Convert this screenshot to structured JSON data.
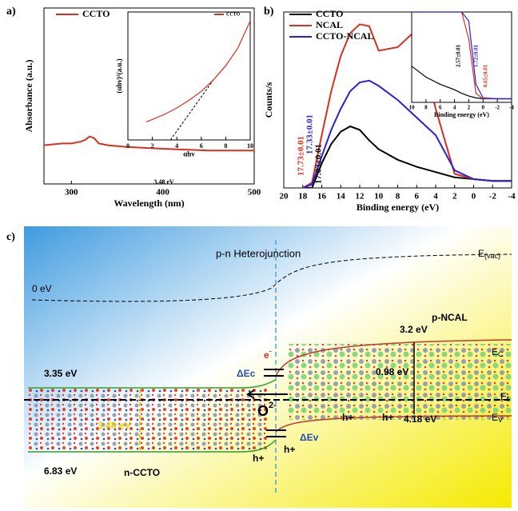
{
  "chart_data": [
    {
      "type": "line",
      "label": "a)",
      "xlabel": "Wavelength (nm)",
      "ylabel": "Absorbance (a.u.)",
      "x": [
        270,
        290,
        300,
        310,
        315,
        320,
        325,
        330,
        340,
        360,
        400,
        450,
        500
      ],
      "series": [
        {
          "name": "CCTO",
          "color": "#d7301f",
          "values": [
            22,
            23,
            23,
            24,
            25,
            27,
            26,
            23,
            22,
            21,
            20,
            19,
            19
          ]
        }
      ],
      "xlim": [
        270,
        500
      ],
      "xticks": [
        300,
        400,
        500
      ],
      "ylim": [
        0,
        100
      ]
    },
    {
      "type": "line",
      "xlabel": "αhv",
      "ylabel": "(αhv)²(a.u.)",
      "x": [
        1.5,
        3,
        4,
        5,
        6,
        7,
        8,
        9,
        10
      ],
      "series": [
        {
          "name": "CCTO",
          "color": "#d7301f",
          "values": [
            14,
            20,
            25,
            31,
            38,
            47,
            58,
            72,
            93
          ]
        }
      ],
      "tangent": {
        "x": [
          3.48,
          7
        ],
        "values": [
          0,
          47
        ]
      },
      "annotations": [
        "3.48 eV"
      ],
      "xlim": [
        0,
        10
      ],
      "xticks": [
        0,
        2,
        4,
        6,
        8,
        10
      ],
      "ylim": [
        0,
        100
      ]
    },
    {
      "type": "line",
      "label": "b)",
      "xlabel": "Binding energy (eV)",
      "ylabel": "Counts/s",
      "x": [
        18,
        17.03,
        16,
        15,
        14,
        13,
        12,
        11,
        10,
        8,
        6,
        4,
        2,
        0,
        -2,
        -4
      ],
      "series": [
        {
          "name": "CCTO",
          "color": "#000000",
          "values": [
            0,
            0,
            14,
            25,
            32,
            35,
            33,
            27,
            22,
            16,
            12,
            9,
            6,
            5,
            4,
            4
          ]
        },
        {
          "name": "NCAL",
          "color": "#d7301f",
          "values": [
            0,
            3,
            30,
            55,
            75,
            88,
            93,
            92,
            78,
            80,
            90,
            45,
            8,
            5,
            4,
            4
          ]
        },
        {
          "name": "CCTO-NCAL",
          "color": "#2b1fd8",
          "values": [
            0,
            2,
            18,
            33,
            45,
            55,
            60,
            61,
            58,
            50,
            40,
            30,
            10,
            5,
            4,
            4
          ]
        }
      ],
      "annotations": [
        "17.73±0.01",
        "17.33±0.01",
        "17.03±0.01"
      ],
      "xlim": [
        20,
        -4
      ],
      "xticks": [
        20,
        18,
        16,
        14,
        12,
        10,
        8,
        6,
        4,
        2,
        0,
        -2,
        -4
      ],
      "ylim": [
        0,
        100
      ]
    },
    {
      "type": "line",
      "xlabel": "Binding energy (eV)",
      "x": [
        10,
        8,
        6,
        4,
        3,
        2,
        1,
        0,
        -2,
        -4
      ],
      "series": [
        {
          "color": "#000000",
          "values": [
            40,
            28,
            20,
            14,
            10,
            7,
            5,
            4,
            4,
            4
          ]
        },
        {
          "color": "#d7301f",
          "values": [
            100,
            100,
            100,
            100,
            100,
            70,
            10,
            4,
            4,
            4
          ]
        },
        {
          "color": "#2b1fd8",
          "values": [
            100,
            100,
            100,
            100,
            100,
            90,
            20,
            5,
            4,
            4
          ]
        }
      ],
      "annotations": [
        "2.57±0.01",
        "1.72±0.01",
        "0.65±0.01"
      ],
      "xlim": [
        10,
        -4
      ],
      "xticks": [
        10,
        8,
        6,
        4,
        2,
        0,
        -2,
        -4
      ],
      "ylim": [
        0,
        100
      ]
    }
  ],
  "diagram": {
    "label": "c)",
    "title": "p-n Heterojunction",
    "vacuum": "E",
    "vacuum_sub": "(vac)",
    "zero": "0 eV",
    "p_side": "p-NCAL",
    "p_gap": "3.2 eV",
    "ec": "E",
    "ec_sub": "C",
    "p_fermi": "0.98 eV",
    "ef": "E",
    "ef_sub": "f",
    "ev": "E",
    "ev_sub": "V",
    "p_vb": "4.18 eV",
    "n_cb": "3.35 eV",
    "n_gap": "3.48 eV",
    "n_vb": "6.83 eV",
    "n_side": "n-CCTO",
    "dec": "ΔEc",
    "dev": "ΔEv",
    "oxygen": "O",
    "oxygen_sup": "2-",
    "electron": "e",
    "electron_sup": "-",
    "holes": [
      "h+",
      "h+",
      "h+",
      "h+"
    ]
  }
}
